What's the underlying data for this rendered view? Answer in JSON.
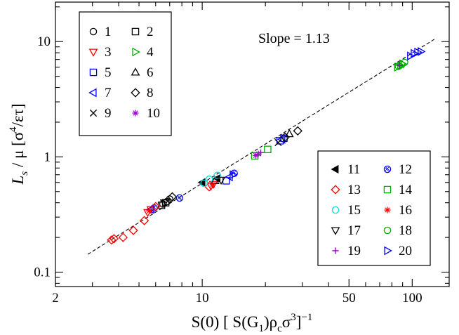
{
  "chart_data": {
    "type": "scatter",
    "scale": {
      "x": "log",
      "y": "log"
    },
    "xlim": [
      2,
      150
    ],
    "ylim": [
      0.075,
      22
    ],
    "x_ticks": [
      {
        "value": 2,
        "label": "2"
      },
      {
        "value": 10,
        "label": "10"
      },
      {
        "value": 50,
        "label": "50"
      },
      {
        "value": 100,
        "label": "100"
      }
    ],
    "y_ticks": [
      {
        "value": 0.1,
        "label": "0.1"
      },
      {
        "value": 1,
        "label": "1"
      },
      {
        "value": 10,
        "label": "10"
      }
    ],
    "xlabel": {
      "text": "S(0) [S(G₁)ρcσ³]⁻¹",
      "pre": "S(0) [ S(G",
      "sub1": "1",
      "mid": ")ρ",
      "sub2": "c",
      "sigma": "σ",
      "sup1": "3",
      "close": "]",
      "sup2": "−1"
    },
    "ylabel": {
      "text": "Ls / μ [σ⁴/ετ]",
      "L": "L",
      "sub": "s",
      "mu": " / μ  [σ",
      "sup": "4",
      "rest": "/ετ]"
    },
    "annotation": "Slope = 1.13",
    "fit_line": {
      "slope": 1.13,
      "x_range": [
        2.85,
        130
      ],
      "anchor": {
        "x": 10,
        "y": 0.59
      },
      "style": "dashed",
      "color": "#000000"
    },
    "series": [
      {
        "name": "1",
        "marker": "circle",
        "color": "#000000",
        "points": [
          [
            6.5,
            0.39
          ],
          [
            6.8,
            0.41
          ],
          [
            7.0,
            0.43
          ]
        ]
      },
      {
        "name": "2",
        "marker": "square",
        "color": "#000000",
        "points": [
          [
            6.4,
            0.38
          ],
          [
            6.7,
            0.4
          ]
        ]
      },
      {
        "name": "3",
        "marker": "triangle-down",
        "color": "#ff0000",
        "points": [
          [
            5.5,
            0.33
          ],
          [
            5.7,
            0.35
          ],
          [
            11.0,
            0.56
          ],
          [
            11.3,
            0.58
          ]
        ]
      },
      {
        "name": "4",
        "marker": "triangle-right",
        "color": "#00aa00",
        "points": [
          [
            85,
            6.0
          ],
          [
            88,
            6.2
          ],
          [
            90,
            6.4
          ]
        ]
      },
      {
        "name": "5",
        "marker": "square",
        "color": "#0000ff",
        "points": [
          [
            13.0,
            0.62
          ],
          [
            23.5,
            1.38
          ],
          [
            24.5,
            1.45
          ]
        ]
      },
      {
        "name": "6",
        "marker": "triangle-up",
        "color": "#000000",
        "points": [
          [
            11.5,
            0.62
          ],
          [
            26.0,
            1.58
          ]
        ]
      },
      {
        "name": "7",
        "marker": "triangle-left",
        "color": "#0000ff",
        "points": [
          [
            5.7,
            0.35
          ],
          [
            13.5,
            0.67
          ],
          [
            24.0,
            1.42
          ]
        ]
      },
      {
        "name": "8",
        "marker": "diamond",
        "color": "#000000",
        "points": [
          [
            7.2,
            0.45
          ],
          [
            24.8,
            1.48
          ],
          [
            28.5,
            1.68
          ]
        ]
      },
      {
        "name": "9",
        "marker": "x",
        "color": "#000000",
        "points": [
          [
            23.0,
            1.33
          ]
        ]
      },
      {
        "name": "10",
        "marker": "asterisk",
        "color": "#9900cc",
        "points": [
          [
            18.0,
            1.03
          ],
          [
            18.5,
            1.06
          ]
        ]
      },
      {
        "name": "11",
        "marker": "triangle-left-filled",
        "color": "#000000",
        "points": [
          [
            10.0,
            0.6
          ],
          [
            11.8,
            0.65
          ]
        ]
      },
      {
        "name": "12",
        "marker": "circle-hatched",
        "color": "#0000ff",
        "points": [
          [
            5.9,
            0.36
          ],
          [
            7.8,
            0.44
          ],
          [
            14.2,
            0.72
          ]
        ]
      },
      {
        "name": "13",
        "marker": "diamond",
        "color": "#ff0000",
        "points": [
          [
            3.7,
            0.19
          ],
          [
            3.8,
            0.195
          ],
          [
            4.2,
            0.2
          ],
          [
            4.7,
            0.23
          ],
          [
            5.3,
            0.28
          ],
          [
            6.0,
            0.37
          ],
          [
            10.8,
            0.55
          ]
        ]
      },
      {
        "name": "14",
        "marker": "square",
        "color": "#00aa00",
        "points": [
          [
            17.8,
            1.02
          ],
          [
            20.5,
            1.16
          ]
        ]
      },
      {
        "name": "15",
        "marker": "circle",
        "color": "#00e0e0",
        "points": [
          [
            10.2,
            0.59
          ],
          [
            10.8,
            0.64
          ],
          [
            11.8,
            0.69
          ]
        ]
      },
      {
        "name": "16",
        "marker": "asterisk",
        "color": "#ff0000",
        "points": [
          [
            5.6,
            0.34
          ],
          [
            11.2,
            0.57
          ]
        ]
      },
      {
        "name": "17",
        "marker": "triangle-down",
        "color": "#000000",
        "points": [
          [
            6.6,
            0.4
          ],
          [
            12.3,
            0.63
          ]
        ]
      },
      {
        "name": "18",
        "marker": "circle",
        "color": "#00aa00",
        "points": [
          [
            86,
            6.1
          ],
          [
            92,
            6.6
          ],
          [
            89,
            6.3
          ]
        ]
      },
      {
        "name": "19",
        "marker": "plus",
        "color": "#9900cc",
        "points": [
          [
            87,
            6.2
          ],
          [
            19.0,
            1.09
          ]
        ]
      },
      {
        "name": "20",
        "marker": "triangle-right",
        "color": "#0000ff",
        "points": [
          [
            98,
            7.5
          ],
          [
            102,
            7.9
          ],
          [
            106,
            8.1
          ],
          [
            110,
            8.2
          ],
          [
            14.0,
            0.7
          ]
        ]
      }
    ]
  }
}
